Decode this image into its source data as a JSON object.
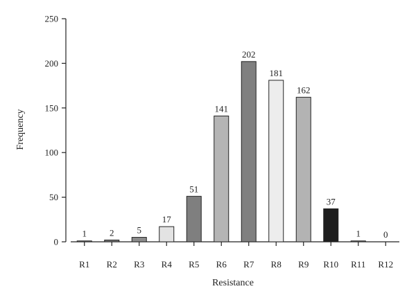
{
  "chart_data": {
    "type": "bar",
    "title": "",
    "xlabel": "Resistance",
    "ylabel": "Frequency",
    "ylim": [
      0,
      250
    ],
    "yticks": [
      0,
      50,
      100,
      150,
      200,
      250
    ],
    "grid": false,
    "categories": [
      "R1",
      "R2",
      "R3",
      "R4",
      "R5",
      "R6",
      "R7",
      "R8",
      "R9",
      "R10",
      "R11",
      "R12"
    ],
    "values": [
      1,
      2,
      5,
      17,
      51,
      141,
      202,
      181,
      162,
      37,
      1,
      0
    ],
    "bar_colors": [
      "#9e9e9e",
      "#7a7a7a",
      "#8c8c8c",
      "#e3e3e3",
      "#7f7f7f",
      "#b5b5b5",
      "#808080",
      "#ededed",
      "#b3b3b3",
      "#1e1e1e",
      "#9e9e9e",
      "#9e9e9e"
    ]
  }
}
